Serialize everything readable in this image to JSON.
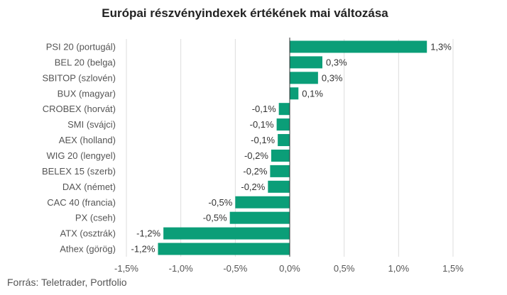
{
  "title": "Európai részvényindexek értékének mai változása",
  "source": "Forrás: Teletrader, Portfolio",
  "colors": {
    "bar": "#0b9e78",
    "grid": "#dddddd",
    "axis": "#333333",
    "text": "#555555"
  },
  "chart_data": {
    "type": "bar",
    "orientation": "horizontal",
    "title": "Európai részvényindexek értékének mai változása",
    "xlabel": "",
    "ylabel": "",
    "xlim": [
      -1.5,
      1.5
    ],
    "grid": true,
    "x_ticks": [
      -1.5,
      -1.0,
      -0.5,
      0.0,
      0.5,
      1.0,
      1.5
    ],
    "x_tick_labels": [
      "-1,5%",
      "-1,0%",
      "-0,5%",
      "0,0%",
      "0,5%",
      "1,0%",
      "1,5%"
    ],
    "categories": [
      "PSI 20 (portugál)",
      "BEL 20 (belga)",
      "SBITOP (szlovén)",
      "BUX (magyar)",
      "CROBEX (horvát)",
      "SMI (svájci)",
      "AEX (holland)",
      "WIG 20 (lengyel)",
      "BELEX 15 (szerb)",
      "DAX (német)",
      "CAC 40 (francia)",
      "PX (cseh)",
      "ATX (osztrák)",
      "Athex (görög)"
    ],
    "values": [
      1.26,
      0.3,
      0.26,
      0.08,
      -0.1,
      -0.12,
      -0.11,
      -0.17,
      -0.18,
      -0.2,
      -0.5,
      -0.55,
      -1.16,
      -1.21
    ],
    "data_labels": [
      "1,3%",
      "0,3%",
      "0,3%",
      "0,1%",
      "-0,1%",
      "-0,1%",
      "-0,1%",
      "-0,2%",
      "-0,2%",
      "-0,2%",
      "-0,5%",
      "-0,5%",
      "-1,2%",
      "-1,2%"
    ]
  }
}
